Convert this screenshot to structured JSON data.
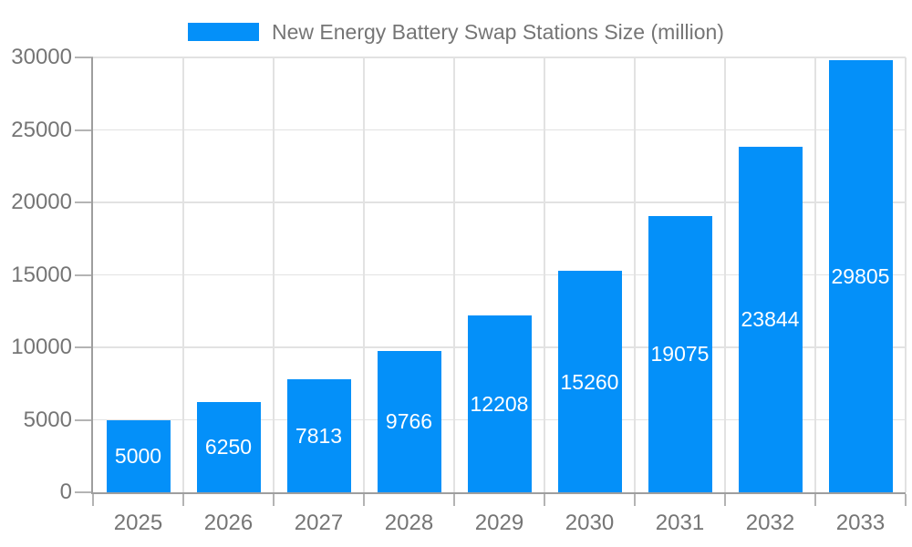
{
  "legend": {
    "label": "New Energy Battery Swap Stations Size (million)"
  },
  "chart_data": {
    "type": "bar",
    "title": "New Energy Battery Swap Stations Size (million)",
    "categories": [
      "2025",
      "2026",
      "2027",
      "2028",
      "2029",
      "2030",
      "2031",
      "2032",
      "2033"
    ],
    "values": [
      5000,
      6250,
      7813,
      9766,
      12208,
      15260,
      19075,
      23844,
      29805
    ],
    "xlabel": "",
    "ylabel": "",
    "ylim": [
      0,
      30000
    ],
    "ytick_step": 5000,
    "grid": true,
    "legend_position": "top-center",
    "colors": {
      "bar": "#0490f9",
      "value_label": "#ffffff",
      "axis_text": "#757575",
      "axis_line": "#9e9e9e",
      "gridline": "#e2e2e2",
      "tick": "#b4b4b4",
      "background": "#ffffff"
    }
  }
}
